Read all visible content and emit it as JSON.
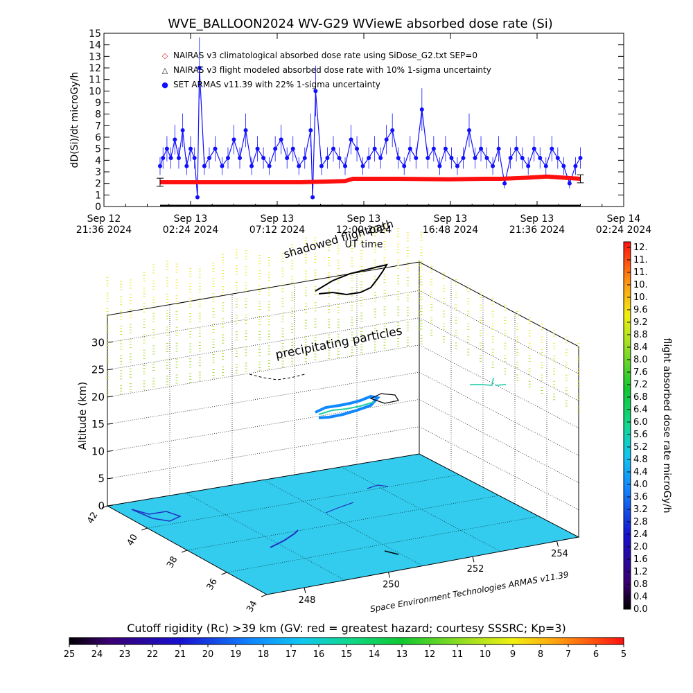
{
  "chart_data": [
    {
      "type": "scatter",
      "title": "WVE_BALLOON2024 WV-G29 WViewE absorbed dose rate (Si)",
      "xlabel": "UT time",
      "ylabel": "dD(Si)/dt microGy/h",
      "ylim": [
        0,
        15
      ],
      "yticks": [
        "0",
        "1",
        "2",
        "3",
        "4",
        "5",
        "6",
        "7",
        "8",
        "9",
        "10",
        "11",
        "12",
        "13",
        "14",
        "15"
      ],
      "xlim_hours": [
        0,
        52.8
      ],
      "xticks": [
        {
          "l1": "Sep 12",
          "l2": "21:36 2024"
        },
        {
          "l1": "Sep 13",
          "l2": "02:24 2024"
        },
        {
          "l1": "Sep 13",
          "l2": "07:12 2024"
        },
        {
          "l1": "Sep 13",
          "l2": "12:00 2024"
        },
        {
          "l1": "Sep 13",
          "l2": "16:48 2024"
        },
        {
          "l1": "Sep 13",
          "l2": "21:36 2024"
        },
        {
          "l1": "Sep 14",
          "l2": "02:24 2024"
        }
      ],
      "legend_position": "top-left",
      "legend": [
        {
          "symbol": "◇",
          "color": "#e02020",
          "text": "NAIRAS v3 climatological absorbed dose rate using SiDose_G2.txt SEP=0"
        },
        {
          "symbol": "△",
          "color": "#000000",
          "text": "NAIRAS v3 flight modeled absorbed dose rate with 10% 1-sigma uncertainty"
        },
        {
          "symbol": "●",
          "color": "#1010ff",
          "text": "SET ARMAS v11.39 with 22% 1-sigma uncertainty"
        }
      ],
      "series": [
        {
          "name": "NAIRAS v3 climatological absorbed dose rate using SiDose_G2.txt SEP=0",
          "color": "#ff1010",
          "x": [
            5.7,
            10,
            15,
            20,
            24.5,
            25.3,
            30,
            35,
            38.6,
            40.3,
            43.2,
            45,
            48.4
          ],
          "y": [
            2.1,
            2.1,
            2.1,
            2.1,
            2.2,
            2.4,
            2.4,
            2.35,
            2.4,
            2.4,
            2.5,
            2.6,
            2.4
          ]
        },
        {
          "name": "NAIRAS v3 flight modeled absorbed dose rate with 10% 1-sigma uncertainty",
          "color": "#000000",
          "x": [
            5.7,
            48.4
          ],
          "y": [
            0.0,
            0.0
          ]
        },
        {
          "name": "SET ARMAS v11.39 with 22% 1-sigma uncertainty",
          "color": "#1010ff",
          "x": [
            5.7,
            6.0,
            6.4,
            6.8,
            7.2,
            7.6,
            8.0,
            8.4,
            8.8,
            9.2,
            9.5,
            9.7,
            10.2,
            10.7,
            11.3,
            12.0,
            12.6,
            13.2,
            13.8,
            14.4,
            15.0,
            15.6,
            16.2,
            16.8,
            17.4,
            18.0,
            18.6,
            19.2,
            19.8,
            20.4,
            21.0,
            21.2,
            21.5,
            22.1,
            22.7,
            23.3,
            23.9,
            24.5,
            25.1,
            25.7,
            26.3,
            26.9,
            27.5,
            28.1,
            28.7,
            29.3,
            29.9,
            30.5,
            31.1,
            31.7,
            32.3,
            32.9,
            33.5,
            34.1,
            34.7,
            35.3,
            35.9,
            36.5,
            37.1,
            37.7,
            38.3,
            38.9,
            39.5,
            40.1,
            40.7,
            41.3,
            41.9,
            42.5,
            43.1,
            43.7,
            44.3,
            44.9,
            45.5,
            46.1,
            46.7,
            47.3,
            47.9,
            48.4
          ],
          "y": [
            3.5,
            4.2,
            5.0,
            4.2,
            5.8,
            4.2,
            6.6,
            3.5,
            5.0,
            4.2,
            0.8,
            12.0,
            3.5,
            4.2,
            5.0,
            3.5,
            4.2,
            5.8,
            4.2,
            6.6,
            3.5,
            5.0,
            4.2,
            3.5,
            5.0,
            5.8,
            4.2,
            5.0,
            3.5,
            4.2,
            6.6,
            0.8,
            10.0,
            3.5,
            4.2,
            5.0,
            4.2,
            3.5,
            5.8,
            5.0,
            3.5,
            4.2,
            5.0,
            4.2,
            5.8,
            6.6,
            4.2,
            3.5,
            5.0,
            4.2,
            8.4,
            4.2,
            5.0,
            3.5,
            5.0,
            4.2,
            3.5,
            4.2,
            6.6,
            4.2,
            5.0,
            4.2,
            3.5,
            5.0,
            2.0,
            4.2,
            5.0,
            4.2,
            3.5,
            5.0,
            4.2,
            3.5,
            5.0,
            4.2,
            3.5,
            2.0,
            3.5,
            4.2
          ]
        }
      ]
    },
    {
      "type": "scatter",
      "subtype": "3d-flight-path",
      "zlabel": "Altitude (km)",
      "zlim": [
        0,
        35
      ],
      "zticks": [
        "0",
        "5",
        "10",
        "15",
        "20",
        "25",
        "30"
      ],
      "lat_ticks": [
        "34",
        "36",
        "38",
        "40",
        "42"
      ],
      "lon_ticks": [
        "248",
        "250",
        "252",
        "254"
      ],
      "annotations": {
        "shadow": "shadowed flightpath",
        "precip": "precipitating particles",
        "credit": "Space Environment Technologies ARMAS v11.39"
      },
      "floor_color": "#33ccee",
      "series": [
        {
          "name": "precipitating particles",
          "color": "#a6d83a"
        }
      ]
    }
  ],
  "colorbar_right": {
    "title": "flight absorbed dose rate microGy/h",
    "labels": [
      "0.0",
      "0.4",
      "0.8",
      "1.2",
      "1.6",
      "2.0",
      "2.4",
      "2.8",
      "3.2",
      "3.6",
      "4.0",
      "4.4",
      "4.8",
      "5.2",
      "5.6",
      "6.0",
      "6.4",
      "6.8",
      "7.2",
      "7.6",
      "8.0",
      "8.4",
      "8.8",
      "9.2",
      "9.6",
      "10.",
      "10.",
      "11.",
      "11.",
      "12."
    ]
  },
  "colorbar_bottom": {
    "title": "Cutoff rigidity (Rc) >39 km (GV: red = greatest hazard; courtesy SSSRC; Kp=3)",
    "labels": [
      "25",
      "24",
      "23",
      "22",
      "21",
      "20",
      "19",
      "18",
      "17",
      "16",
      "15",
      "14",
      "13",
      "12",
      "11",
      "10",
      "9",
      "8",
      "7",
      "6",
      "5"
    ]
  }
}
